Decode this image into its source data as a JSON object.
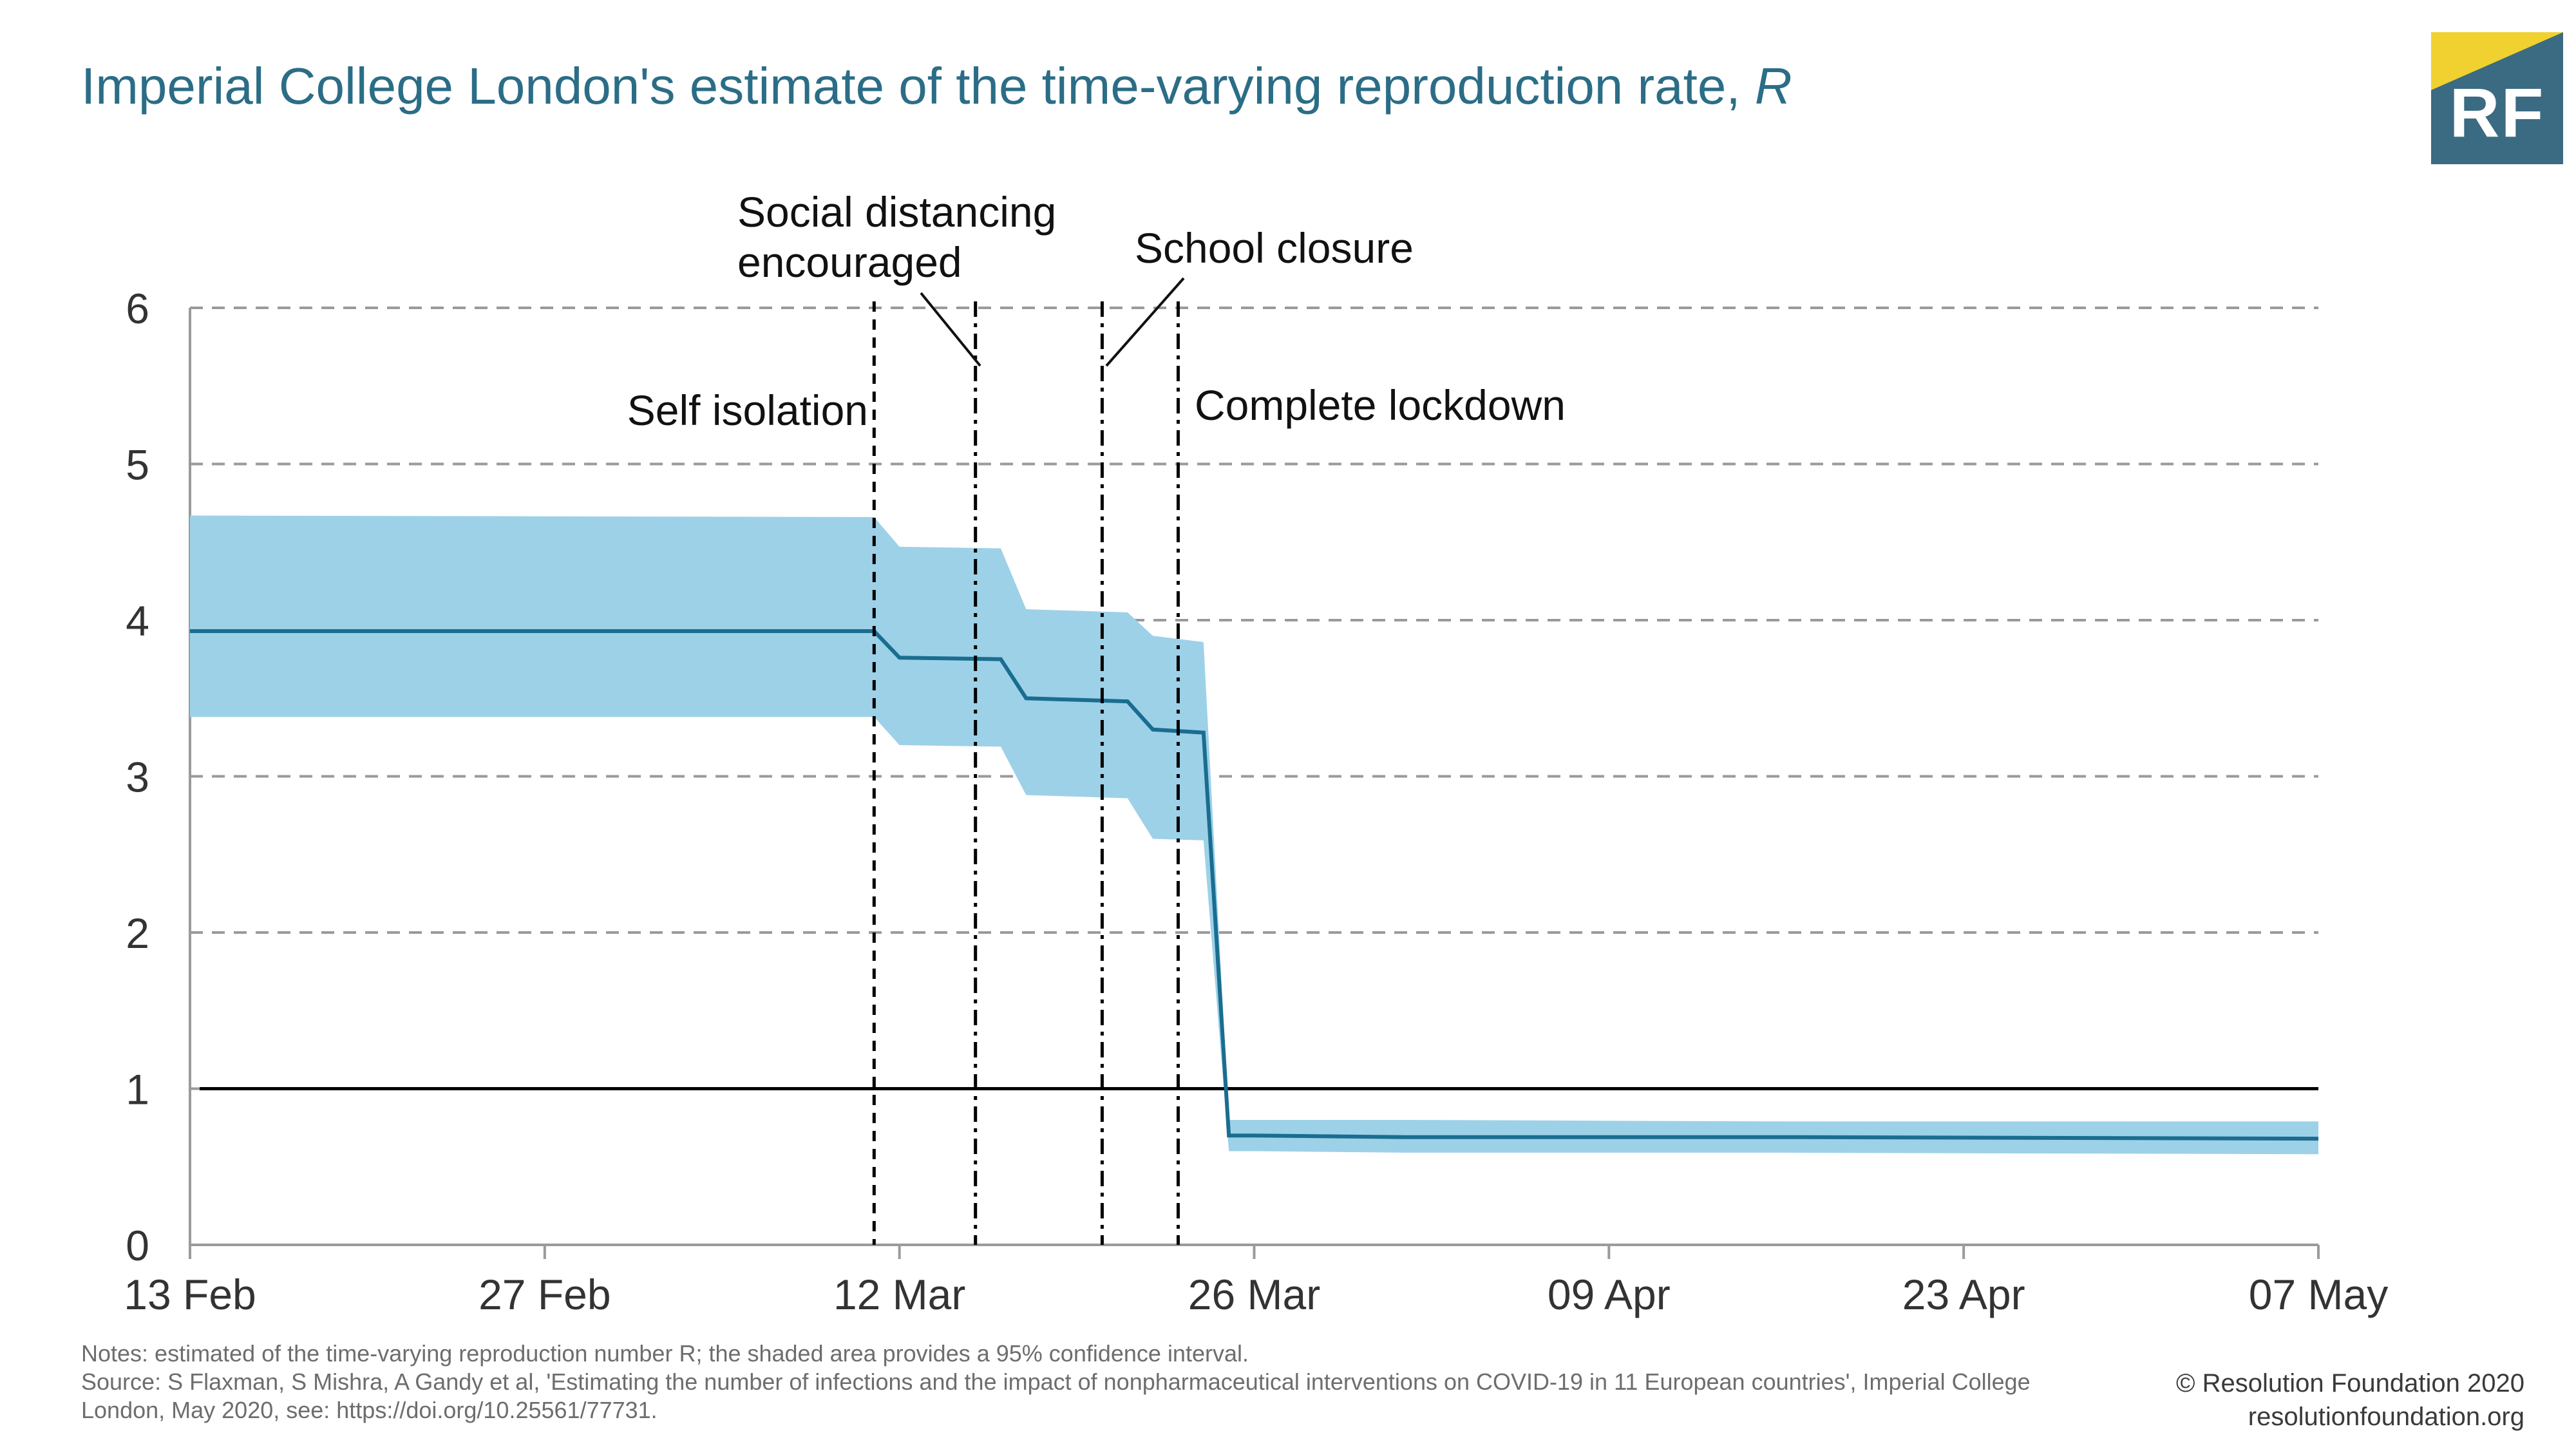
{
  "title": {
    "text": "Imperial College London's estimate of the time-varying reproduction rate, ",
    "italic": "R"
  },
  "logo": {
    "text": "RF",
    "colors": {
      "background": "#3b6b82",
      "accent": "#f0d130"
    }
  },
  "chart_data": {
    "type": "line",
    "x_ticks": [
      "13 Feb",
      "27 Feb",
      "12 Mar",
      "26 Mar",
      "09 Apr",
      "23 Apr",
      "07 May"
    ],
    "y_ticks": [
      "0",
      "1",
      "2",
      "3",
      "4",
      "5",
      "6"
    ],
    "xlim": [
      "2020-02-13",
      "2020-05-07"
    ],
    "ylim": [
      0,
      6
    ],
    "grid": "horizontal dashed",
    "colors": {
      "line": "#1a6d8f",
      "band": "#9dd1e8",
      "reference": "#000000"
    },
    "series": [
      {
        "x": [
          "2020-02-13",
          "2020-03-11",
          "2020-03-12",
          "2020-03-16",
          "2020-03-17",
          "2020-03-21",
          "2020-03-22",
          "2020-03-24",
          "2020-03-25",
          "2020-03-26",
          "2020-04-01",
          "2020-04-16",
          "2020-05-07"
        ],
        "y": [
          3.93,
          3.93,
          3.76,
          3.75,
          3.5,
          3.48,
          3.3,
          3.28,
          0.7,
          0.7,
          0.69,
          0.69,
          0.68
        ],
        "lower": [
          3.38,
          3.38,
          3.2,
          3.19,
          2.88,
          2.86,
          2.6,
          2.59,
          0.6,
          0.6,
          0.59,
          0.59,
          0.58
        ],
        "upper": [
          4.67,
          4.66,
          4.47,
          4.46,
          4.07,
          4.05,
          3.9,
          3.86,
          0.8,
          0.8,
          0.8,
          0.79,
          0.79
        ]
      }
    ],
    "reference_line": 1,
    "interventions": [
      {
        "label": "Self isolation",
        "date": "2020-03-11"
      },
      {
        "label_lines": [
          "Social distancing",
          "encouraged"
        ],
        "date": "2020-03-15"
      },
      {
        "label": "School closure",
        "date": "2020-03-20"
      },
      {
        "label": "Complete lockdown",
        "date": "2020-03-23"
      }
    ]
  },
  "footer": {
    "notes": "Notes: estimated of the time-varying reproduction number R; the shaded area provides a 95% confidence interval.",
    "source": "Source: S Flaxman, S Mishra, A Gandy et al, 'Estimating the number of infections and the impact of nonpharmaceutical interventions on COVID-19 in 11 European countries', Imperial College London, May 2020, see: https://doi.org/10.25561/77731.",
    "copyright": "© Resolution Foundation 2020",
    "website": "resolutionfoundation.org"
  }
}
